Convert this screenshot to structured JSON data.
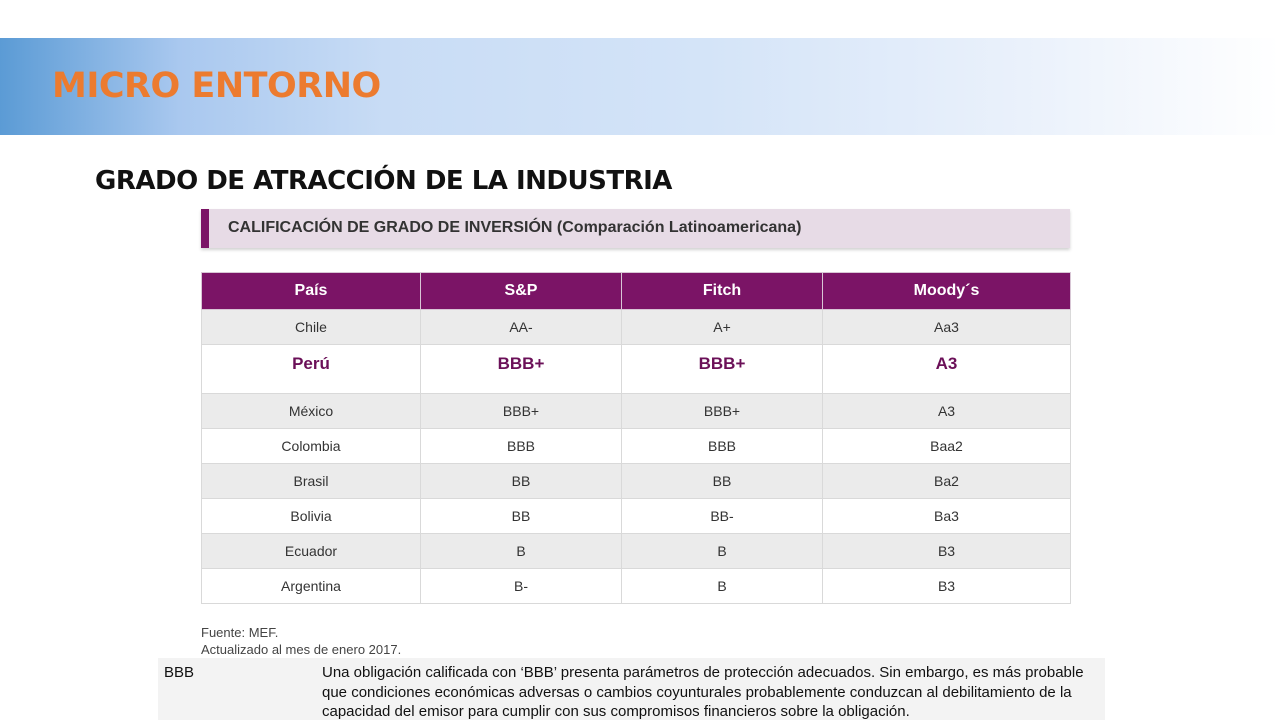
{
  "header": {
    "title": "MICRO ENTORNO",
    "subtitle": "GRADO DE ATRACCIÓN DE LA INDUSTRIA"
  },
  "section": {
    "title": "CALIFICACIÓN DE GRADO DE INVERSIÓN (Comparación Latinoamericana)"
  },
  "table": {
    "columns": [
      "País",
      "S&P",
      "Fitch",
      "Moody´s"
    ],
    "rows": [
      [
        "Chile",
        "AA-",
        "A+",
        "Aa3"
      ],
      [
        "Perú",
        "BBB+",
        "BBB+",
        "A3"
      ],
      [
        "México",
        "BBB+",
        "BBB+",
        "A3"
      ],
      [
        "Colombia",
        "BBB",
        "BBB",
        "Baa2"
      ],
      [
        "Brasil",
        "BB",
        "BB",
        "Ba2"
      ],
      [
        "Bolivia",
        "BB",
        "BB-",
        "Ba3"
      ],
      [
        "Ecuador",
        "B",
        "B",
        "B3"
      ],
      [
        "Argentina",
        "B-",
        "B",
        "B3"
      ]
    ]
  },
  "source": {
    "line1": "Fuente: MEF.",
    "line2": "Actualizado al mes de enero 2017."
  },
  "definition": {
    "term": "BBB",
    "text": "Una obligación calificada con ‘BBB’ presenta parámetros de protección adecuados. Sin embargo, es más probable que condiciones económicas adversas o cambios coyunturales probablemente conduzcan al debilitamiento de la capacidad del emisor para cumplir con sus compromisos financieros sobre la obligación."
  },
  "colors": {
    "accent_orange": "#ec7b2f",
    "header_purple": "#7b1466",
    "highlight_text": "#6b1058"
  }
}
